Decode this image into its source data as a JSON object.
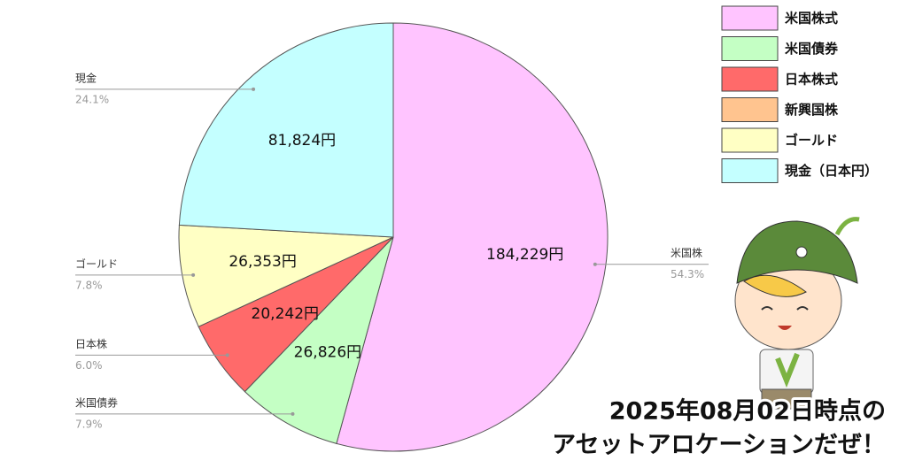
{
  "chart_data": {
    "type": "pie",
    "legend": [
      {
        "name": "米国株式",
        "color": "#ffc4ff"
      },
      {
        "name": "米国債券",
        "color": "#c4ffc4"
      },
      {
        "name": "日本株式",
        "color": "#ff6a6a"
      },
      {
        "name": "新興国株",
        "color": "#ffc48f"
      },
      {
        "name": "ゴールド",
        "color": "#ffffc4"
      },
      {
        "name": "現金（日本円）",
        "color": "#c4ffff"
      }
    ],
    "categories": [
      "米国株",
      "米国債券",
      "日本株",
      "ゴールド",
      "現金"
    ],
    "colors": [
      "#ffc4ff",
      "#c4ffc4",
      "#ff6a6a",
      "#ffffc4",
      "#c4ffff"
    ],
    "values": [
      184229,
      26826,
      20242,
      26353,
      81824
    ],
    "value_labels": [
      "184,229円",
      "26,826円",
      "20,242円",
      "26,353円",
      "81,824円"
    ],
    "percents": [
      54.3,
      7.9,
      6.0,
      7.8,
      24.1
    ],
    "percent_labels": [
      "54.3%",
      "7.9%",
      "6.0%",
      "7.8%",
      "24.1%"
    ],
    "annotation": [
      "2025年08月02日時点の",
      "アセットアロケーションだぜ！"
    ]
  }
}
